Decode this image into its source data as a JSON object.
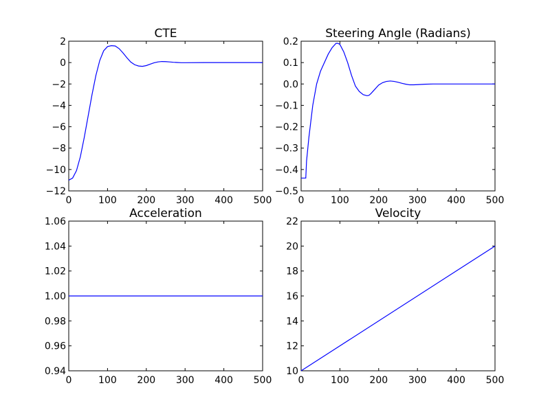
{
  "figure": {
    "background": "#ffffff"
  },
  "chart_data": [
    {
      "type": "line",
      "title": "CTE",
      "xlim": [
        0,
        500
      ],
      "ylim": [
        -12,
        2
      ],
      "x_ticks": [
        0,
        100,
        200,
        300,
        400,
        500
      ],
      "y_ticks": [
        -12,
        -10,
        -8,
        -6,
        -4,
        -2,
        0,
        2
      ],
      "x_tick_labels": [
        "0",
        "100",
        "200",
        "300",
        "400",
        "500"
      ],
      "y_tick_labels": [
        "−12",
        "−10",
        "−8",
        "−6",
        "−4",
        "−2",
        "0",
        "2"
      ],
      "color": "#0000ff",
      "series": [
        {
          "name": "CTE",
          "x": [
            0,
            10,
            20,
            30,
            40,
            50,
            60,
            70,
            80,
            90,
            100,
            110,
            120,
            130,
            140,
            150,
            160,
            170,
            180,
            190,
            200,
            210,
            220,
            230,
            240,
            250,
            260,
            270,
            280,
            290,
            300,
            350,
            400,
            450,
            500
          ],
          "y": [
            -11,
            -10.8,
            -10.1,
            -8.8,
            -7.0,
            -5.0,
            -3.0,
            -1.2,
            0.2,
            1.1,
            1.5,
            1.58,
            1.55,
            1.3,
            0.9,
            0.45,
            0.05,
            -0.2,
            -0.32,
            -0.35,
            -0.28,
            -0.15,
            -0.02,
            0.06,
            0.1,
            0.09,
            0.06,
            0.03,
            0.01,
            -0.01,
            -0.01,
            0,
            0,
            0,
            0
          ]
        }
      ]
    },
    {
      "type": "line",
      "title": "Steering Angle (Radians)",
      "xlim": [
        0,
        500
      ],
      "ylim": [
        -0.5,
        0.2
      ],
      "x_ticks": [
        0,
        100,
        200,
        300,
        400,
        500
      ],
      "y_ticks": [
        -0.5,
        -0.4,
        -0.3,
        -0.2,
        -0.1,
        0.0,
        0.1,
        0.2
      ],
      "x_tick_labels": [
        "0",
        "100",
        "200",
        "300",
        "400",
        "500"
      ],
      "y_tick_labels": [
        "−0.5",
        "−0.4",
        "−0.3",
        "−0.2",
        "−0.1",
        "0.0",
        "0.1",
        "0.2"
      ],
      "color": "#0000ff",
      "series": [
        {
          "name": "Steering Angle",
          "x": [
            0,
            12,
            14,
            20,
            30,
            40,
            50,
            60,
            70,
            80,
            90,
            95,
            100,
            110,
            120,
            130,
            140,
            150,
            160,
            170,
            175,
            180,
            190,
            200,
            210,
            220,
            230,
            240,
            250,
            260,
            270,
            280,
            290,
            300,
            320,
            340,
            400,
            450,
            500
          ],
          "y": [
            -0.44,
            -0.44,
            -0.36,
            -0.25,
            -0.1,
            0.0,
            0.06,
            0.1,
            0.14,
            0.17,
            0.19,
            0.19,
            0.185,
            0.15,
            0.1,
            0.04,
            -0.01,
            -0.035,
            -0.05,
            -0.055,
            -0.053,
            -0.045,
            -0.025,
            -0.005,
            0.006,
            0.012,
            0.014,
            0.012,
            0.008,
            0.003,
            -0.001,
            -0.004,
            -0.004,
            -0.003,
            -0.001,
            0,
            0,
            0,
            0
          ]
        }
      ]
    },
    {
      "type": "line",
      "title": "Acceleration",
      "xlim": [
        0,
        500
      ],
      "ylim": [
        0.94,
        1.06
      ],
      "x_ticks": [
        0,
        100,
        200,
        300,
        400,
        500
      ],
      "y_ticks": [
        0.94,
        0.96,
        0.98,
        1.0,
        1.02,
        1.04,
        1.06
      ],
      "x_tick_labels": [
        "0",
        "100",
        "200",
        "300",
        "400",
        "500"
      ],
      "y_tick_labels": [
        "0.94",
        "0.96",
        "0.98",
        "1.00",
        "1.02",
        "1.04",
        "1.06"
      ],
      "color": "#0000ff",
      "series": [
        {
          "name": "Acceleration",
          "x": [
            0,
            500
          ],
          "y": [
            1.0,
            1.0
          ]
        }
      ]
    },
    {
      "type": "line",
      "title": "Velocity",
      "xlim": [
        0,
        500
      ],
      "ylim": [
        10,
        22
      ],
      "x_ticks": [
        0,
        100,
        200,
        300,
        400,
        500
      ],
      "y_ticks": [
        10,
        12,
        14,
        16,
        18,
        20,
        22
      ],
      "x_tick_labels": [
        "0",
        "100",
        "200",
        "300",
        "400",
        "500"
      ],
      "y_tick_labels": [
        "10",
        "12",
        "14",
        "16",
        "18",
        "20",
        "22"
      ],
      "color": "#0000ff",
      "series": [
        {
          "name": "Velocity",
          "x": [
            0,
            500
          ],
          "y": [
            10,
            20
          ]
        }
      ]
    }
  ]
}
